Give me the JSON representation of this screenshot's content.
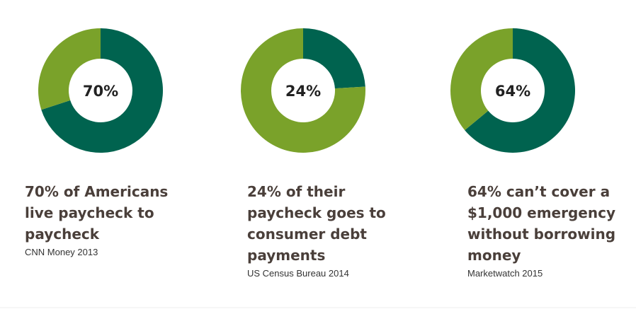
{
  "chart_data": [
    {
      "type": "donut",
      "center_label": "70%",
      "series": [
        {
          "values": [
            70,
            30
          ],
          "colors": [
            "#00634f",
            "#7aa22a"
          ]
        }
      ],
      "caption_lines": [
        "70% of Americans",
        "live paycheck to",
        "paycheck"
      ],
      "source": "CNN Money 2013"
    },
    {
      "type": "donut",
      "center_label": "24%",
      "series": [
        {
          "values": [
            24,
            76
          ],
          "colors": [
            "#00634f",
            "#7aa22a"
          ]
        }
      ],
      "caption_lines": [
        "24% of their",
        "paycheck goes to",
        "consumer debt",
        "payments"
      ],
      "source": "US Census Bureau 2014"
    },
    {
      "type": "donut",
      "center_label": "64%",
      "series": [
        {
          "values": [
            64,
            36
          ],
          "colors": [
            "#00634f",
            "#7aa22a"
          ]
        }
      ],
      "caption_lines": [
        "64% can’t cover a",
        "$1,000 emergency",
        "without borrowing",
        "money"
      ],
      "source": "Marketwatch 2015"
    }
  ]
}
